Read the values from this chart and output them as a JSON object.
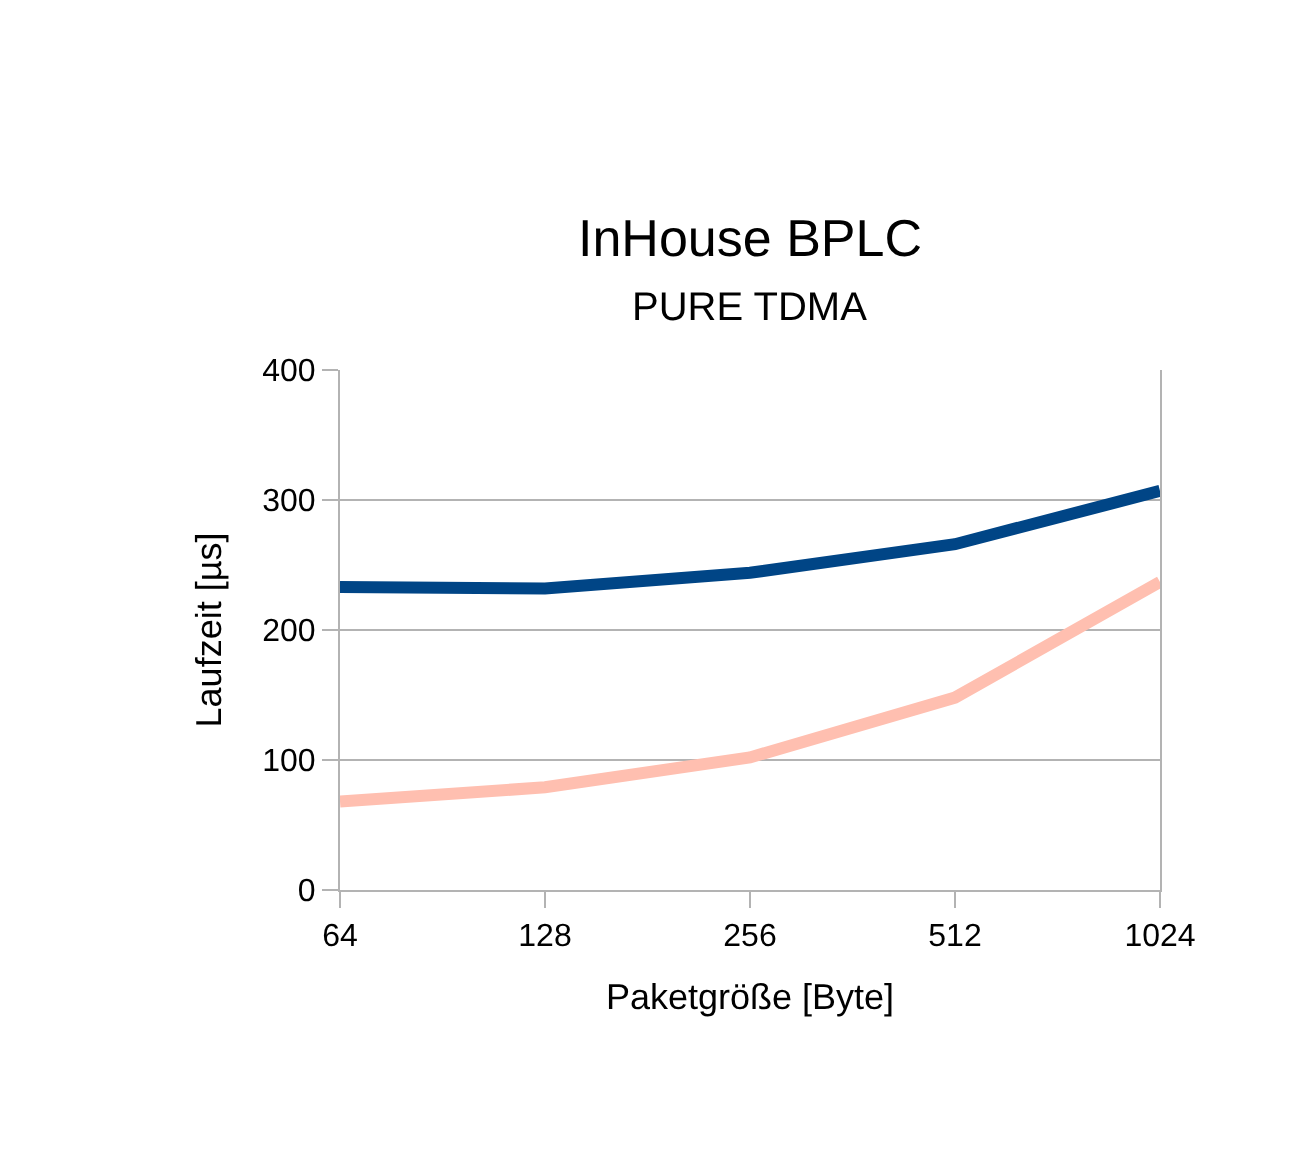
{
  "chart_data": {
    "type": "line",
    "title": "InHouse BPLC",
    "subtitle": "PURE TDMA",
    "xlabel": "Paketgröße [Byte]",
    "ylabel": "Laufzeit [µs]",
    "categories": [
      "64",
      "128",
      "256",
      "512",
      "1024"
    ],
    "series": [
      {
        "color": "#004586",
        "values": [
          233,
          232,
          244,
          266,
          307
        ]
      },
      {
        "color": "#ffbfb0",
        "values": [
          68,
          79,
          102,
          148,
          237
        ]
      }
    ],
    "ylim": [
      0,
      400
    ],
    "yticks": [
      0,
      100,
      200,
      300,
      400
    ],
    "grid": "y",
    "marker": "none",
    "line_style": "solid"
  }
}
